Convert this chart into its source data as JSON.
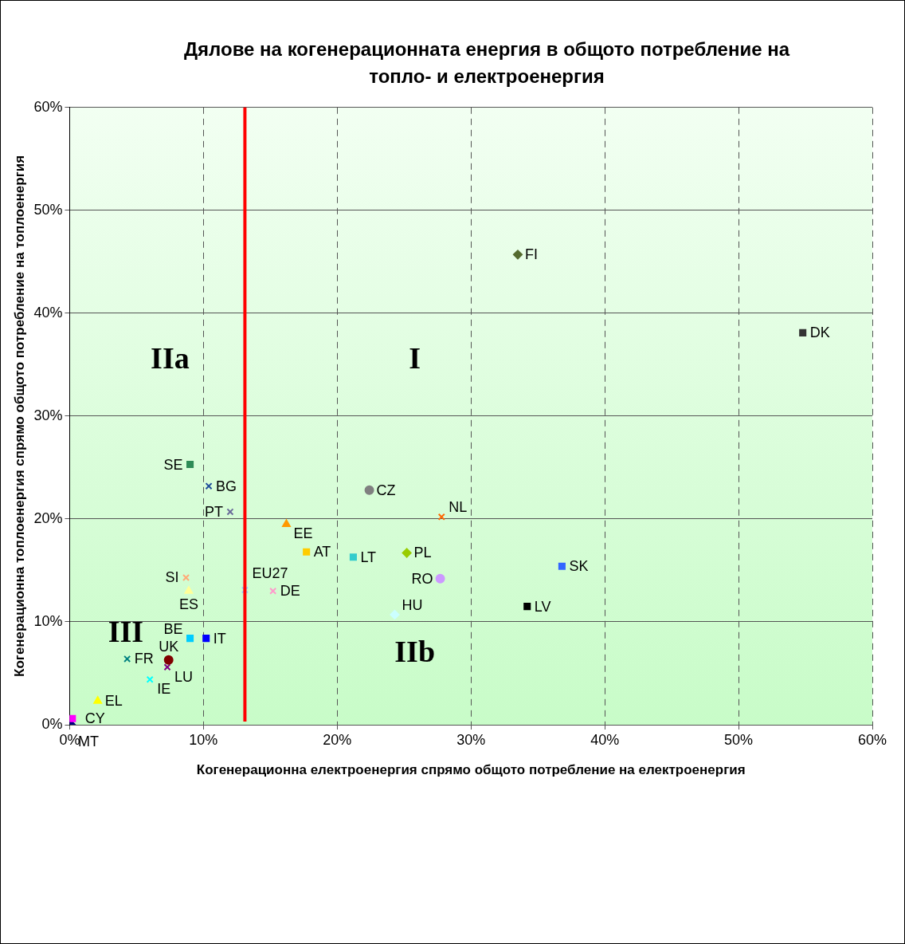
{
  "chart_data": {
    "type": "scatter",
    "title": "Дялове на когенерационната енергия в общото потребление на топло- и електроенергия",
    "xlabel": "Когенерационна електроенергия спрямо общото потребление на електроенергия",
    "ylabel": "Когенерационна топлоенергия спрямо общото потребление на топлоенергия",
    "xlim": [
      0,
      60
    ],
    "ylim": [
      0,
      60
    ],
    "xticks": [
      {
        "value": 0,
        "label": "0%"
      },
      {
        "value": 10,
        "label": "10%"
      },
      {
        "value": 20,
        "label": "20%"
      },
      {
        "value": 30,
        "label": "30%"
      },
      {
        "value": 40,
        "label": "40%"
      },
      {
        "value": 50,
        "label": "50%"
      },
      {
        "value": 60,
        "label": "60%"
      }
    ],
    "yticks": [
      {
        "value": 0,
        "label": "0%"
      },
      {
        "value": 10,
        "label": "10%"
      },
      {
        "value": 20,
        "label": "20%"
      },
      {
        "value": 30,
        "label": "30%"
      },
      {
        "value": 40,
        "label": "40%"
      },
      {
        "value": 50,
        "label": "50%"
      },
      {
        "value": 60,
        "label": "60%"
      }
    ],
    "grid": true,
    "legend": false,
    "series": [
      {
        "name": "FI",
        "color": "#556b2f",
        "marker": "diamond",
        "x": [
          33.5
        ],
        "values": [
          45.7
        ]
      },
      {
        "name": "DK",
        "color": "#333333",
        "marker": "square",
        "x": [
          54.8
        ],
        "values": [
          38.1
        ]
      },
      {
        "name": "SE",
        "color": "#2e8b57",
        "marker": "square",
        "x": [
          9.0
        ],
        "values": [
          25.3
        ]
      },
      {
        "name": "BG",
        "color": "#1f4e9a",
        "marker": "cross",
        "x": [
          10.4
        ],
        "values": [
          23.2
        ]
      },
      {
        "name": "PT",
        "color": "#6a6a9a",
        "marker": "cross",
        "x": [
          12.0
        ],
        "values": [
          20.7
        ]
      },
      {
        "name": "CZ",
        "color": "#808080",
        "marker": "circle",
        "x": [
          22.4
        ],
        "values": [
          22.8
        ]
      },
      {
        "name": "NL",
        "color": "#ff6600",
        "marker": "cross",
        "x": [
          27.8
        ],
        "values": [
          20.2
        ]
      },
      {
        "name": "EE",
        "color": "#ff9900",
        "marker": "triangle",
        "x": [
          16.2
        ],
        "values": [
          19.5
        ]
      },
      {
        "name": "AT",
        "color": "#ffcc00",
        "marker": "square",
        "x": [
          17.7
        ],
        "values": [
          16.8
        ]
      },
      {
        "name": "LT",
        "color": "#33cccc",
        "marker": "square",
        "x": [
          21.2
        ],
        "values": [
          16.3
        ]
      },
      {
        "name": "PL",
        "color": "#99cc00",
        "marker": "diamond",
        "x": [
          25.2
        ],
        "values": [
          16.7
        ]
      },
      {
        "name": "SK",
        "color": "#3366ff",
        "marker": "square",
        "x": [
          36.8
        ],
        "values": [
          15.4
        ]
      },
      {
        "name": "RO",
        "color": "#cc99ff",
        "marker": "circle",
        "x": [
          27.7
        ],
        "values": [
          14.2
        ]
      },
      {
        "name": "SI",
        "color": "#ffaa77",
        "marker": "cross",
        "x": [
          8.7
        ],
        "values": [
          14.3
        ]
      },
      {
        "name": "ES",
        "color": "#ffff99",
        "marker": "triangle",
        "x": [
          8.9
        ],
        "values": [
          13.0
        ]
      },
      {
        "name": "DE",
        "color": "#ff99cc",
        "marker": "cross",
        "x": [
          15.2
        ],
        "values": [
          13.0
        ]
      },
      {
        "name": "EU27",
        "color": "#99ccff",
        "marker": "cross",
        "x": [
          13.1
        ],
        "values": [
          13.1
        ]
      },
      {
        "name": "LV",
        "color": "#000000",
        "marker": "square",
        "x": [
          34.2
        ],
        "values": [
          11.5
        ]
      },
      {
        "name": "HU",
        "color": "#ccffff",
        "marker": "diamond",
        "x": [
          24.3
        ],
        "values": [
          10.7
        ]
      },
      {
        "name": "BE",
        "color": "#00ccff",
        "marker": "square",
        "x": [
          9.0
        ],
        "values": [
          8.4
        ]
      },
      {
        "name": "IT",
        "color": "#0000ff",
        "marker": "square",
        "x": [
          10.2
        ],
        "values": [
          8.4
        ]
      },
      {
        "name": "FR",
        "color": "#008080",
        "marker": "cross",
        "x": [
          4.3
        ],
        "values": [
          6.4
        ]
      },
      {
        "name": "UK",
        "color": "#800000",
        "marker": "circle",
        "x": [
          7.4
        ],
        "values": [
          6.3
        ]
      },
      {
        "name": "LU",
        "color": "#800080",
        "marker": "cross",
        "x": [
          7.3
        ],
        "values": [
          5.6
        ]
      },
      {
        "name": "IE",
        "color": "#00ffff",
        "marker": "cross",
        "x": [
          6.0
        ],
        "values": [
          4.4
        ]
      },
      {
        "name": "EL",
        "color": "#ffff00",
        "marker": "triangle",
        "x": [
          2.1
        ],
        "values": [
          2.3
        ]
      },
      {
        "name": "CY",
        "color": "#ff00ff",
        "marker": "square",
        "x": [
          0.2
        ],
        "values": [
          0.6
        ]
      },
      {
        "name": "MT",
        "color": "#000080",
        "marker": "diamond",
        "x": [
          0.1
        ],
        "values": [
          0.0
        ]
      }
    ],
    "ref_lines": [
      {
        "axis": "x",
        "value": 13.1,
        "color": "#ff0000"
      }
    ],
    "annotations": [
      "I",
      "IIa",
      "IIb",
      "III"
    ]
  }
}
